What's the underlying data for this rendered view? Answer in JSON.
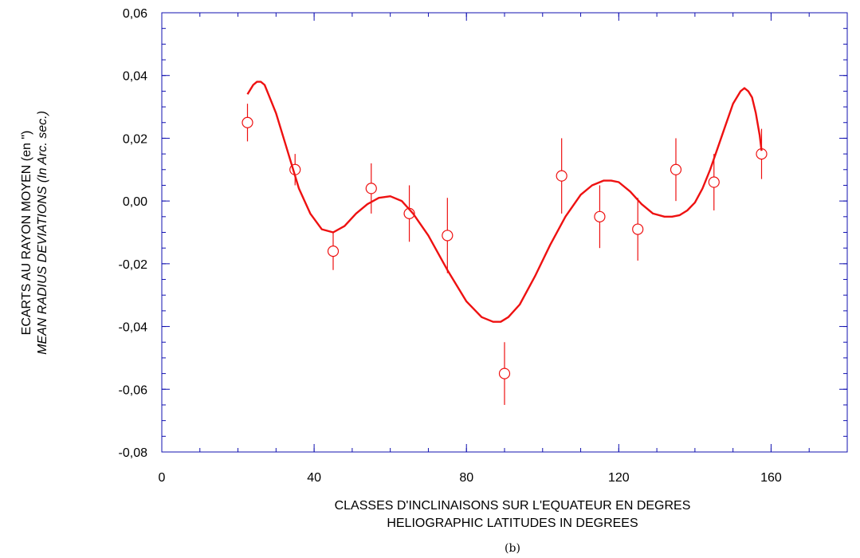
{
  "chart_data": {
    "type": "scatter",
    "caption": "(b)",
    "xlabel": [
      "CLASSES D'INCLINAISONS SUR L'EQUATEUR EN DEGRES",
      "HELIOGRAPHIC LATITUDES IN DEGREES"
    ],
    "ylabel": [
      "ECARTS  AU RAYON MOYEN (en \")",
      "MEAN RADIUS DEVIATIONS (In Arc. sec.)"
    ],
    "xlim": [
      0,
      180
    ],
    "ylim": [
      -0.08,
      0.06
    ],
    "x_ticks": [
      0,
      40,
      80,
      120,
      160
    ],
    "x_tick_labels": [
      "0",
      "40",
      "80",
      "120",
      "160"
    ],
    "y_ticks": [
      -0.08,
      -0.06,
      -0.04,
      -0.02,
      0.0,
      0.02,
      0.04,
      0.06
    ],
    "y_tick_labels": [
      "-0,08",
      "-0,06",
      "-0,04",
      "-0,02",
      "0,00",
      "0,02",
      "0,04",
      "0,06"
    ],
    "colors": {
      "data": "#ee1111",
      "axis": "#1010b0"
    },
    "series": [
      {
        "type": "scatter",
        "marker": "open-circle",
        "x": [
          22.5,
          35,
          45,
          55,
          65,
          75,
          90,
          105,
          115,
          125,
          135,
          145,
          157.5
        ],
        "y": [
          0.025,
          0.01,
          -0.016,
          0.004,
          -0.004,
          -0.011,
          -0.055,
          0.008,
          -0.005,
          -0.009,
          0.01,
          0.006,
          0.015
        ],
        "ylow": [
          0.019,
          0.005,
          -0.022,
          -0.004,
          -0.013,
          -0.023,
          -0.065,
          -0.004,
          -0.015,
          -0.019,
          0.0,
          -0.003,
          0.007
        ],
        "yhigh": [
          0.031,
          0.015,
          -0.01,
          0.012,
          0.005,
          0.001,
          -0.045,
          0.02,
          0.005,
          0.001,
          0.02,
          0.015,
          0.023
        ]
      },
      {
        "type": "line",
        "x": [
          22.5,
          24,
          25,
          26,
          27,
          28,
          30,
          33,
          36,
          39,
          42,
          45,
          48,
          51,
          54,
          57,
          60,
          63,
          66,
          70,
          75,
          80,
          84,
          87,
          89,
          91,
          94,
          98,
          102,
          106,
          110,
          113,
          116,
          118,
          120,
          123,
          126,
          129,
          132,
          134,
          136,
          138,
          140,
          142,
          144,
          146,
          148,
          150,
          152,
          153,
          154,
          155,
          156,
          157,
          157.5
        ],
        "y": [
          0.034,
          0.037,
          0.038,
          0.038,
          0.037,
          0.034,
          0.028,
          0.016,
          0.004,
          -0.004,
          -0.009,
          -0.01,
          -0.008,
          -0.004,
          -0.001,
          0.001,
          0.0015,
          0.0,
          -0.004,
          -0.011,
          -0.022,
          -0.032,
          -0.037,
          -0.0385,
          -0.0385,
          -0.037,
          -0.033,
          -0.024,
          -0.014,
          -0.005,
          0.002,
          0.005,
          0.0065,
          0.0065,
          0.006,
          0.003,
          -0.001,
          -0.004,
          -0.005,
          -0.005,
          -0.0045,
          -0.003,
          -0.0005,
          0.004,
          0.01,
          0.017,
          0.024,
          0.031,
          0.035,
          0.036,
          0.035,
          0.033,
          0.028,
          0.021,
          0.016
        ]
      }
    ]
  }
}
